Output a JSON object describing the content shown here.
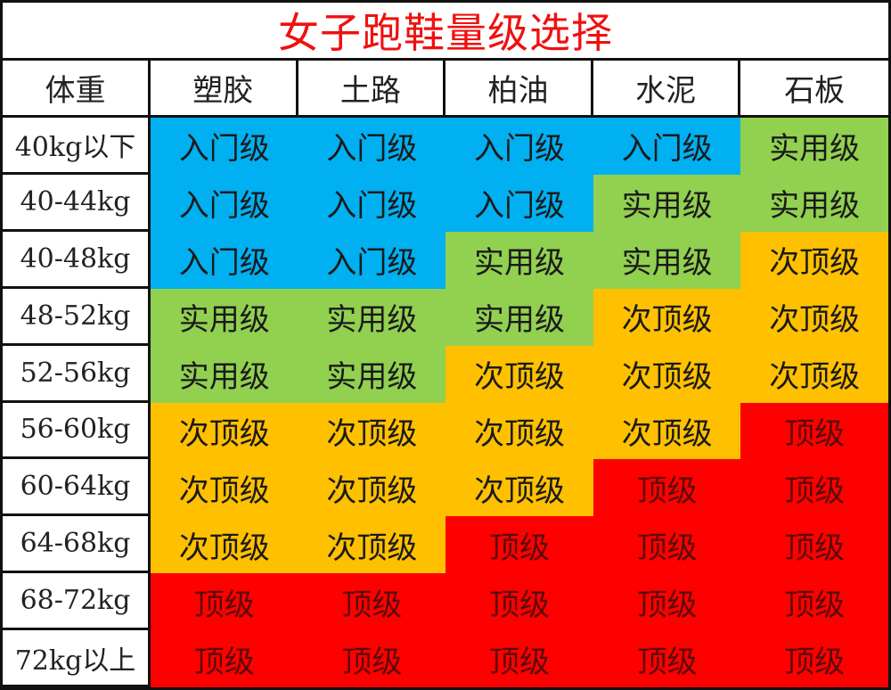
{
  "title": "女子跑鞋量级选择",
  "header": {
    "weight_label": "体重",
    "surfaces": [
      "塑胶",
      "土路",
      "柏油",
      "水泥",
      "石板"
    ]
  },
  "levels": {
    "entry": {
      "label": "入门级",
      "color": "#00b0f0"
    },
    "practical": {
      "label": "实用级",
      "color": "#92d050"
    },
    "sub_top": {
      "label": "次顶级",
      "color": "#ffc000"
    },
    "top": {
      "label": "顶级",
      "color": "#ff0000"
    }
  },
  "rows": [
    {
      "weight": "40kg以下",
      "cells": [
        "入门级",
        "入门级",
        "入门级",
        "入门级",
        "实用级"
      ],
      "levels": [
        "entry",
        "entry",
        "entry",
        "entry",
        "practical"
      ]
    },
    {
      "weight": "40-44kg",
      "cells": [
        "入门级",
        "入门级",
        "入门级",
        "实用级",
        "实用级"
      ],
      "levels": [
        "entry",
        "entry",
        "entry",
        "practical",
        "practical"
      ]
    },
    {
      "weight": "40-48kg",
      "cells": [
        "入门级",
        "入门级",
        "实用级",
        "实用级",
        "次顶级"
      ],
      "levels": [
        "entry",
        "entry",
        "practical",
        "practical",
        "sub_top"
      ]
    },
    {
      "weight": "48-52kg",
      "cells": [
        "实用级",
        "实用级",
        "实用级",
        "次顶级",
        "次顶级"
      ],
      "levels": [
        "practical",
        "practical",
        "practical",
        "sub_top",
        "sub_top"
      ]
    },
    {
      "weight": "52-56kg",
      "cells": [
        "实用级",
        "实用级",
        "次顶级",
        "次顶级",
        "次顶级"
      ],
      "levels": [
        "practical",
        "practical",
        "sub_top",
        "sub_top",
        "sub_top"
      ]
    },
    {
      "weight": "56-60kg",
      "cells": [
        "次顶级",
        "次顶级",
        "次顶级",
        "次顶级",
        "顶级"
      ],
      "levels": [
        "sub_top",
        "sub_top",
        "sub_top",
        "sub_top",
        "top"
      ]
    },
    {
      "weight": "60-64kg",
      "cells": [
        "次顶级",
        "次顶级",
        "次顶级",
        "顶级",
        "顶级"
      ],
      "levels": [
        "sub_top",
        "sub_top",
        "sub_top",
        "top",
        "top"
      ]
    },
    {
      "weight": "64-68kg",
      "cells": [
        "次顶级",
        "次顶级",
        "顶级",
        "顶级",
        "顶级"
      ],
      "levels": [
        "sub_top",
        "sub_top",
        "top",
        "top",
        "top"
      ]
    },
    {
      "weight": "68-72kg",
      "cells": [
        "顶级",
        "顶级",
        "顶级",
        "顶级",
        "顶级"
      ],
      "levels": [
        "top",
        "top",
        "top",
        "top",
        "top"
      ]
    },
    {
      "weight": "72kg以上",
      "cells": [
        "顶级",
        "顶级",
        "顶级",
        "顶级",
        "顶级"
      ],
      "levels": [
        "top",
        "top",
        "top",
        "top",
        "top"
      ]
    }
  ]
}
